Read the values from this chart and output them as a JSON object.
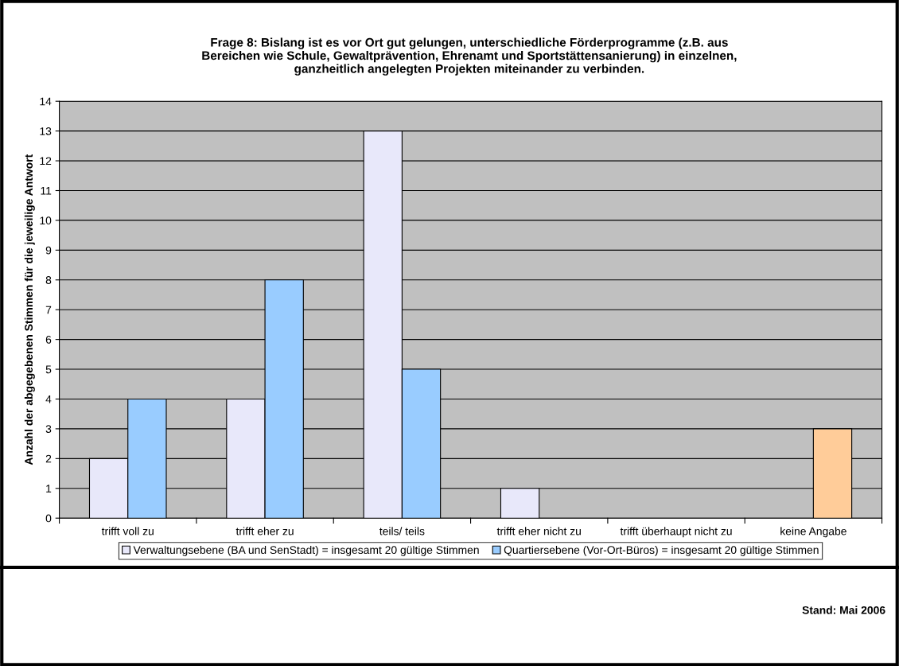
{
  "chart_data": {
    "type": "bar",
    "title": "Frage 8: Bislang ist es vor Ort gut gelungen, unterschiedliche Förderprogramme (z.B. aus\nBereichen wie Schule, Gewaltprävention, Ehrenamt und Sportstättensanierung) in einzelnen,\nganzheitlich angelegten Projekten miteinander zu verbinden.",
    "ylabel": "Anzahl der abgegebenen Stimmen für die jeweilige Antwort",
    "categories": [
      "trifft voll zu",
      "trifft eher zu",
      "teils/ teils",
      "trifft eher nicht zu",
      "trifft überhaupt nicht zu",
      "keine Angabe"
    ],
    "series": [
      {
        "name": "Verwaltungsebene (BA und SenStadt) = insgesamt 20 gültige Stimmen",
        "color": "#e8e8fa",
        "values": [
          2,
          4,
          13,
          1,
          null,
          null
        ]
      },
      {
        "name": "Quartiersebene (Vor-Ort-Büros) = insgesamt 20 gültige Stimmen",
        "color": "#99ccff",
        "colors": [
          "#99ccff",
          "#99ccff",
          "#99ccff",
          "#99ccff",
          "#99ccff",
          "#ffcc99"
        ],
        "values": [
          4,
          8,
          5,
          null,
          null,
          3
        ]
      }
    ],
    "ylim": [
      0,
      14
    ],
    "yticks": [
      0,
      1,
      2,
      3,
      4,
      5,
      6,
      7,
      8,
      9,
      10,
      11,
      12,
      13,
      14
    ],
    "grid": "y",
    "legend": "bottom",
    "annotations": [
      "Stand: Mai 2006"
    ]
  }
}
